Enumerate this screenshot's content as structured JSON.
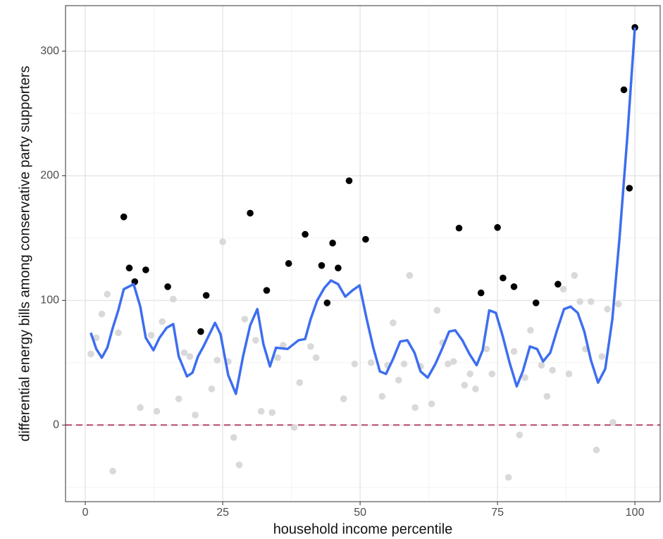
{
  "chart_data": {
    "type": "scatter",
    "x_label": "household income percentile",
    "y_label": "differential energy bills among conservative party supporters",
    "xlim": [
      -3.6,
      104.6
    ],
    "ylim": [
      -61.5,
      336.5
    ],
    "xticks": [
      0,
      25,
      50,
      75,
      100
    ],
    "yticks": [
      0,
      100,
      200,
      300
    ],
    "xminor": [
      12.5,
      37.5,
      62.5,
      87.5
    ],
    "yminor": [
      -50,
      50,
      150,
      250
    ],
    "grid": true,
    "hline": {
      "value": 0,
      "color": "#b5476b",
      "dashed": true
    },
    "series": [
      {
        "type": "scatter",
        "color": "#d9d9d9",
        "x": [
          1,
          2,
          3,
          4,
          5,
          6,
          10,
          12,
          13,
          14,
          16,
          17,
          18,
          19,
          20,
          23,
          24,
          25,
          26,
          27,
          28,
          29,
          31,
          32,
          34,
          35,
          36,
          38,
          39,
          41,
          42,
          47,
          49,
          52,
          54,
          55,
          56,
          57,
          58,
          59,
          61,
          60,
          63,
          64,
          65,
          66,
          67,
          69,
          70,
          71,
          73,
          74,
          77,
          78,
          79,
          80,
          81,
          83,
          84,
          85,
          87,
          88,
          89,
          90,
          91,
          92,
          93,
          94,
          95,
          96,
          97
        ],
        "values": [
          57,
          70,
          89,
          105,
          -37,
          74,
          14,
          72,
          11,
          83,
          101,
          21,
          58,
          55,
          8,
          29,
          52,
          147,
          51,
          -10,
          -32,
          85,
          68,
          11,
          10,
          54,
          64,
          -2,
          34,
          63,
          54,
          21,
          49,
          50,
          23,
          48,
          82,
          36,
          49,
          120,
          47,
          14,
          17,
          92,
          66,
          49,
          51,
          32,
          41,
          29,
          61,
          41,
          -42,
          59,
          -8,
          38,
          76,
          48,
          23,
          44,
          109,
          41,
          120,
          99,
          61,
          99,
          -20,
          55,
          93,
          2,
          97
        ]
      },
      {
        "type": "scatter",
        "color": "#000000",
        "x": [
          7,
          8,
          9,
          11,
          15,
          21,
          22,
          30,
          33,
          37,
          40,
          43,
          44,
          45,
          46,
          48,
          51,
          68,
          72,
          75,
          76,
          78,
          82,
          86,
          98,
          99,
          100
        ],
        "values": [
          167,
          126,
          115,
          124.5,
          111,
          75,
          104,
          170,
          108,
          129.6,
          153,
          128,
          98,
          146,
          126,
          196,
          149,
          158,
          106,
          158.5,
          118,
          111,
          98,
          113,
          269,
          190,
          319
        ]
      },
      {
        "type": "line",
        "color": "#3d6ef0",
        "x": [
          1,
          2,
          3,
          4,
          5,
          6,
          7,
          8.8,
          10,
          11,
          12.4,
          13.5,
          14.8,
          16,
          17,
          18.5,
          19.5,
          20.5,
          21.5,
          23.6,
          24.6,
          26,
          27.4,
          28.7,
          30,
          31.3,
          32.4,
          33.6,
          34.7,
          36.8,
          38.8,
          40,
          41,
          42.2,
          43.5,
          44.7,
          46,
          47.3,
          48.6,
          49.9,
          51.2,
          52.4,
          53.6,
          54.7,
          56,
          57.3,
          58.6,
          59.9,
          61,
          62.3,
          63.7,
          65,
          66.2,
          67.3,
          68.6,
          69.9,
          71.2,
          72.3,
          73.5,
          74.7,
          75.9,
          77.2,
          78.5,
          79.6,
          80.9,
          82.2,
          83.3,
          84.6,
          85.9,
          87.1,
          88.3,
          89.6,
          90.8,
          92,
          93.3,
          94.6,
          95.9,
          97.2,
          98.6,
          100
        ],
        "values": [
          74,
          61,
          54,
          62,
          78,
          92,
          109,
          113,
          95,
          70,
          60,
          70,
          78,
          81,
          55,
          39,
          42,
          55,
          63,
          82,
          73,
          40,
          25,
          55,
          80,
          93,
          65,
          47,
          62,
          61,
          68,
          69,
          85,
          100,
          110,
          116,
          113,
          103,
          108,
          112,
          85,
          62,
          43,
          41,
          53,
          67,
          68,
          58,
          43,
          38,
          49,
          62,
          75,
          76,
          68,
          57,
          48,
          60,
          92,
          90,
          72,
          50,
          31,
          43,
          63,
          61,
          51,
          58,
          77,
          93,
          95,
          90,
          75,
          52,
          34,
          45,
          85,
          150,
          230,
          319
        ]
      }
    ]
  }
}
